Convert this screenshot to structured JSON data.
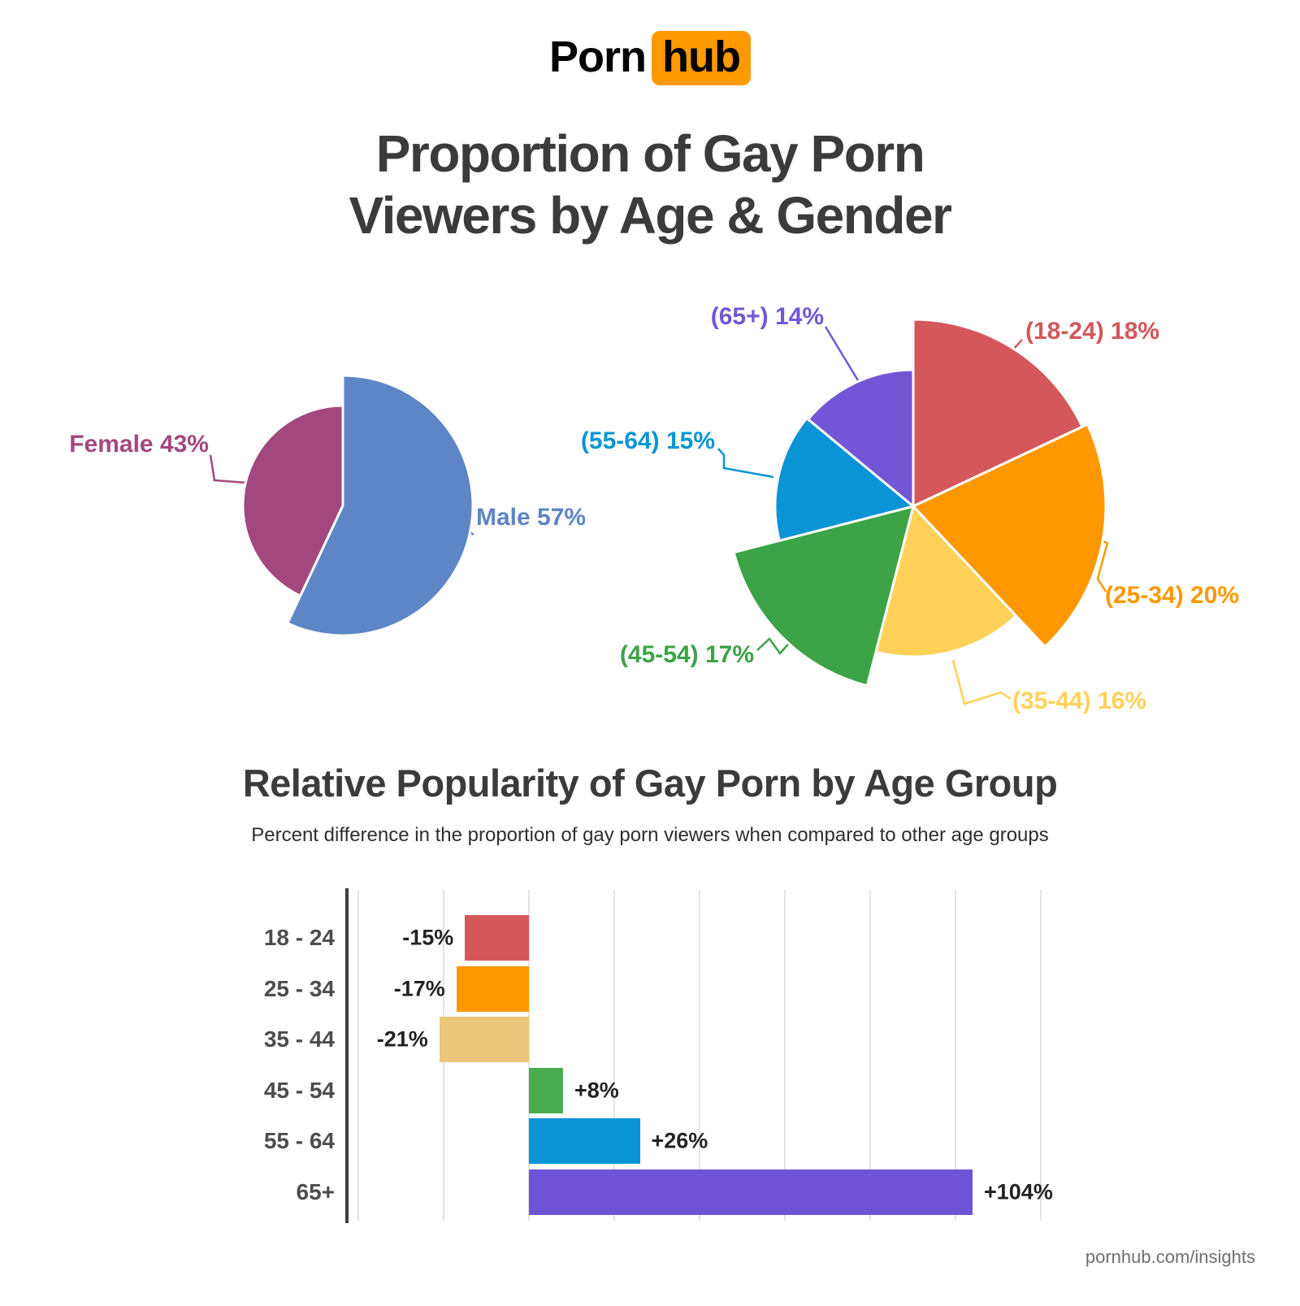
{
  "brand": {
    "logo_left": "Porn",
    "logo_right": "hub",
    "logo_accent_color": "#FF9900"
  },
  "header": {
    "title_line1": "Proportion of Gay Porn",
    "title_line2": "Viewers by Age & Gender"
  },
  "section2": {
    "title": "Relative Popularity of Gay Porn by Age Group",
    "subtitle": "Percent difference in the proportion of gay porn viewers when compared to other age groups"
  },
  "footer": {
    "url": "pornhub.com/insights"
  },
  "chart_data": [
    {
      "type": "pie",
      "name": "gender_split",
      "legend_position": "callout-labels",
      "start_angle_deg": 0,
      "direction": "clockwise",
      "slices": [
        {
          "key": "Male",
          "label": "Male 57%",
          "value": 57,
          "color": "#5E85C5",
          "exploded": true
        },
        {
          "key": "Female",
          "label": "Female 43%",
          "value": 43,
          "color": "#A3487E",
          "exploded": false
        }
      ]
    },
    {
      "type": "pie",
      "name": "age_groups",
      "legend_position": "callout-labels",
      "start_angle_deg": 0,
      "direction": "clockwise",
      "slices": [
        {
          "key": "18-24",
          "label": "(18-24) 18%",
          "value": 18,
          "color": "#D4575C",
          "exploded": true
        },
        {
          "key": "25-34",
          "label": "(25-34) 20%",
          "value": 20,
          "color": "#FF9800",
          "exploded": true
        },
        {
          "key": "35-44",
          "label": "(35-44) 16%",
          "value": 16,
          "color": "#FFD159",
          "exploded": false
        },
        {
          "key": "45-54",
          "label": "(45-54) 17%",
          "value": 17,
          "color": "#3CA346",
          "exploded": true
        },
        {
          "key": "55-64",
          "label": "(55-64) 15%",
          "value": 15,
          "color": "#0A94D6",
          "exploded": false
        },
        {
          "key": "65+",
          "label": "(65+) 14%",
          "value": 14,
          "color": "#7356D6",
          "exploded": false
        }
      ]
    },
    {
      "type": "bar",
      "name": "relative_popularity",
      "orientation": "horizontal",
      "title": "Relative Popularity of Gay Porn by Age Group",
      "subtitle": "Percent difference in the proportion of gay porn viewers when compared to other age groups",
      "categories": [
        "18 - 24",
        "25 - 34",
        "35 - 44",
        "45 - 54",
        "55 - 64",
        "65+"
      ],
      "values": [
        -15,
        -17,
        -21,
        8,
        26,
        104
      ],
      "value_labels": [
        "-15%",
        "-17%",
        "-21%",
        "+8%",
        "+26%",
        "+104%"
      ],
      "colors": [
        "#D4575C",
        "#FF9800",
        "#EAC77B",
        "#4BAB4F",
        "#0A94D6",
        "#6E53D4"
      ],
      "xlim": [
        -40,
        120
      ],
      "grid_step_pct": 20,
      "grid": true
    }
  ]
}
